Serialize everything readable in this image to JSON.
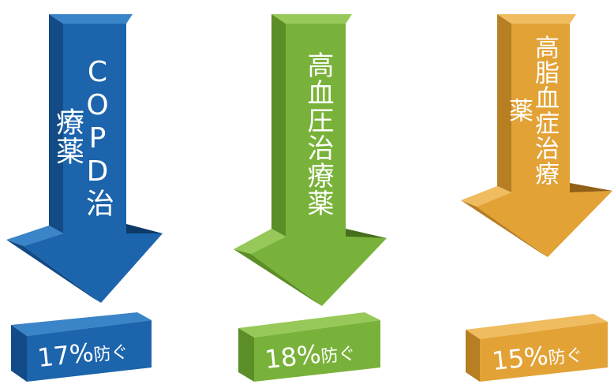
{
  "items": [
    {
      "label": "COPD治療薬",
      "value_text": "17%",
      "suffix": "防ぐ",
      "colors": {
        "front": "#1c64ac",
        "side": "#124b86",
        "top": "#3a84c8",
        "dark": "#0d3a68"
      }
    },
    {
      "label": "高血圧治療薬",
      "value_text": "18%",
      "suffix": "防ぐ",
      "colors": {
        "front": "#79b23a",
        "side": "#5b8e26",
        "top": "#97c95a",
        "dark": "#466f1c"
      }
    },
    {
      "label": "高脂血症治療薬",
      "value_text": "15%",
      "suffix": "防ぐ",
      "colors": {
        "front": "#e2a236",
        "side": "#b77e22",
        "top": "#f0bc60",
        "dark": "#8f6016"
      }
    }
  ]
}
